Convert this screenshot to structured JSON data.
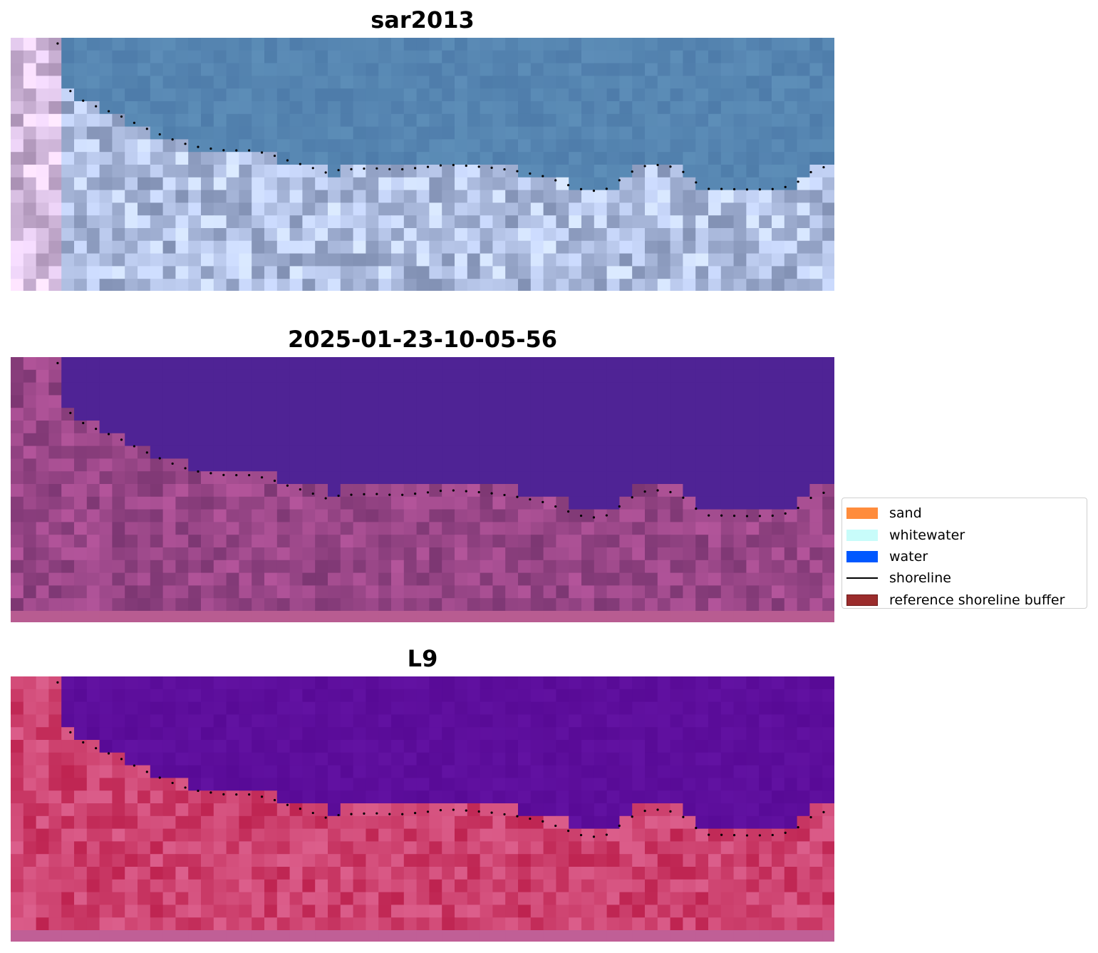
{
  "panels": [
    {
      "title": "sar2013",
      "colormap": "rgb"
    },
    {
      "title": "2025-01-23-10-05-56",
      "colormap": "classified"
    },
    {
      "title": "L9",
      "colormap": "falsecolor"
    }
  ],
  "legend": {
    "items": [
      {
        "label": "sand",
        "kind": "patch",
        "color": "#ff8c3c"
      },
      {
        "label": "whitewater",
        "kind": "patch",
        "color": "#c8fcfa"
      },
      {
        "label": "water",
        "kind": "patch",
        "color": "#0058ff"
      },
      {
        "label": "shoreline",
        "kind": "line",
        "color": "#000000"
      },
      {
        "label": "reference shoreline buffer",
        "kind": "patch",
        "color": "#9b2c2c"
      }
    ]
  },
  "colors": {
    "water_rgb": "#5a82b2",
    "water_classified": "#4f2395",
    "water_falsecolor": "#5c0d98",
    "land_classified": "#8a4380",
    "land_falsecolor": "#c63a6a",
    "shoreline_dots": "#000000"
  }
}
